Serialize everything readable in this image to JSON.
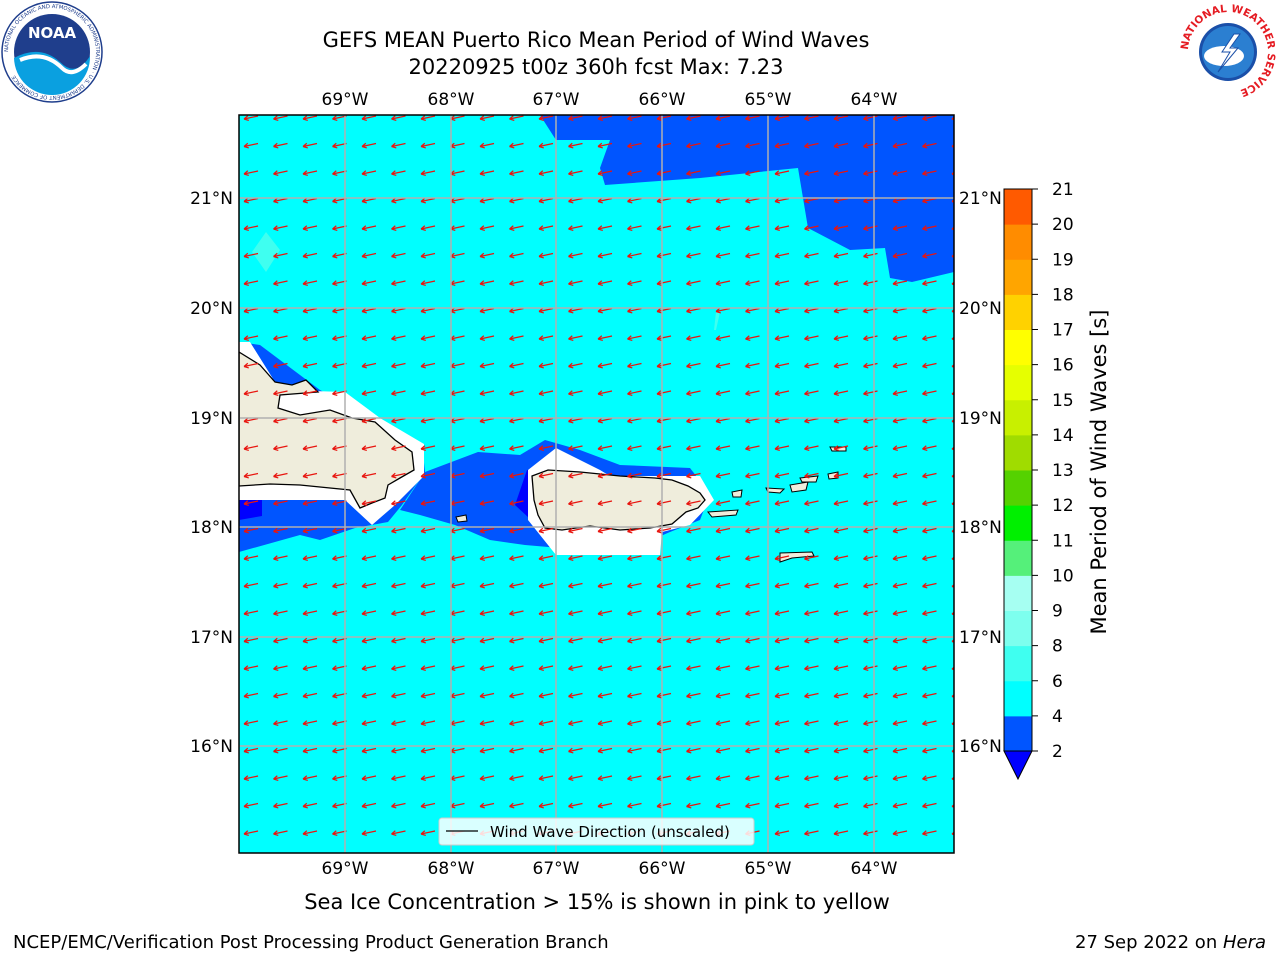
{
  "title": {
    "line1": "GEFS MEAN Puerto Rico Mean Period of Wind Waves",
    "line2": "20220925 t00z 360h fcst   Max: 7.23"
  },
  "map": {
    "lon_ticks": [
      "69°W",
      "68°W",
      "67°W",
      "66°W",
      "65°W",
      "64°W"
    ],
    "lat_ticks": [
      "21°N",
      "20°N",
      "19°N",
      "18°N",
      "17°N",
      "16°N"
    ],
    "legend_label": "Wind Wave Direction (unscaled)",
    "arrow_color": "#e8150f",
    "ocean_color": "#00ffff",
    "land_color": "#efeddc"
  },
  "colorbar": {
    "label": "Mean Period of Wind Waves [s]",
    "ticks": [
      "2",
      "4",
      "6",
      "8",
      "9",
      "10",
      "11",
      "12",
      "13",
      "14",
      "15",
      "16",
      "17",
      "18",
      "19",
      "20",
      "21"
    ],
    "colors": [
      "#0055ff",
      "#00ffff",
      "#3ffff0",
      "#7dffee",
      "#a6fff2",
      "#55f07a",
      "#00f000",
      "#55d200",
      "#a0dc00",
      "#c8f000",
      "#e6ff00",
      "#ffff00",
      "#ffd200",
      "#ffa500",
      "#ff8c00",
      "#ff5a00",
      "#ff2800",
      "#ff0000"
    ],
    "under_color": "#0000ff"
  },
  "footer": {
    "subtitle": "Sea Ice Concentration > 15% is shown in pink to yellow",
    "left": "NCEP/EMC/Verification Post Processing Product Generation Branch",
    "right_date": "27 Sep 2022 on ",
    "right_host": "Hera"
  },
  "logos": {
    "noaa_text": "NOAA",
    "noaa_ring": "NATIONAL OCEANIC AND ATMOSPHERIC ADMINISTRATION · U.S. DEPARTMENT OF COMMERCE",
    "nws_ring": "NATIONAL WEATHER SERVICE"
  }
}
